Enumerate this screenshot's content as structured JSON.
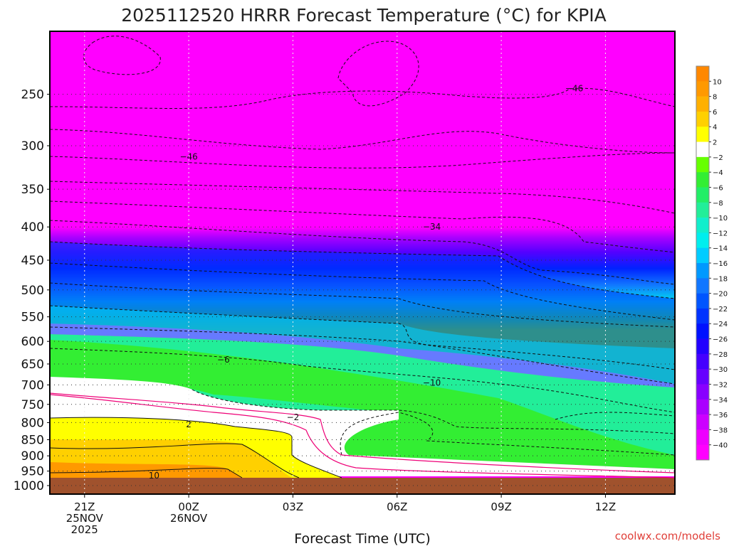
{
  "chart_data": {
    "type": "heatmap",
    "title": "2025112520 HRRR Forecast Temperature (°C) for KPIA",
    "xlabel": "Forecast Time (UTC)",
    "ylabel": "",
    "y_scale": "log",
    "y_inverted": true,
    "ylim": [
      1000,
      200
    ],
    "y_ticks": [
      "250",
      "300",
      "350",
      "400",
      "450",
      "500",
      "550",
      "600",
      "650",
      "700",
      "750",
      "800",
      "850",
      "900",
      "950",
      "1000"
    ],
    "xlim_hours_from_00Z_26NOV": [
      -4,
      14
    ],
    "x_ticks": [
      {
        "hour": -3,
        "lines": [
          "21Z",
          "25NOV",
          "2025"
        ]
      },
      {
        "hour": 0,
        "lines": [
          "00Z",
          "26NOV"
        ]
      },
      {
        "hour": 3,
        "lines": [
          "03Z"
        ]
      },
      {
        "hour": 6,
        "lines": [
          "06Z"
        ]
      },
      {
        "hour": 9,
        "lines": [
          "09Z"
        ]
      },
      {
        "hour": 12,
        "lines": [
          "12Z"
        ]
      }
    ],
    "grid": true,
    "colorbar": {
      "placement": "right",
      "levels": [
        "10",
        "8",
        "6",
        "4",
        "2",
        "−2",
        "−4",
        "−6",
        "−8",
        "−10",
        "−12",
        "−14",
        "−16",
        "−18",
        "−20",
        "−22",
        "−24",
        "−26",
        "−28",
        "−30",
        "−32",
        "−34",
        "−36",
        "−38",
        "−40"
      ],
      "colors": [
        "#ff8800",
        "#ff9900",
        "#ffb000",
        "#ffd000",
        "#ffff00",
        "#ffffff",
        "#66ff00",
        "#33ee33",
        "#22ee66",
        "#22ee99",
        "#11eecc",
        "#00eeee",
        "#00ccff",
        "#0099ff",
        "#1177ff",
        "#0055ff",
        "#0033ff",
        "#0011ff",
        "#2200ff",
        "#4400ff",
        "#6600ff",
        "#8800ff",
        "#aa00ff",
        "#cc00ff",
        "#ee00ff",
        "#ff00ff"
      ]
    },
    "contour_labels": [
      {
        "text": "−46",
        "hour": 11.1,
        "pressure": 245
      },
      {
        "text": "−46",
        "hour": 0.0,
        "pressure": 312
      },
      {
        "text": "−34",
        "hour": 7.0,
        "pressure": 400
      },
      {
        "text": "−6",
        "hour": 1.0,
        "pressure": 640
      },
      {
        "text": "−10",
        "hour": 7.0,
        "pressure": 695
      },
      {
        "text": "−2",
        "hour": 3.0,
        "pressure": 785
      },
      {
        "text": "2",
        "hour": 0.0,
        "pressure": 805
      },
      {
        "text": "10",
        "hour": -1.0,
        "pressure": 965
      }
    ],
    "background_color": "#ff00ff",
    "ground_color": "#a0522d"
  },
  "credit": "coolwx.com/models"
}
